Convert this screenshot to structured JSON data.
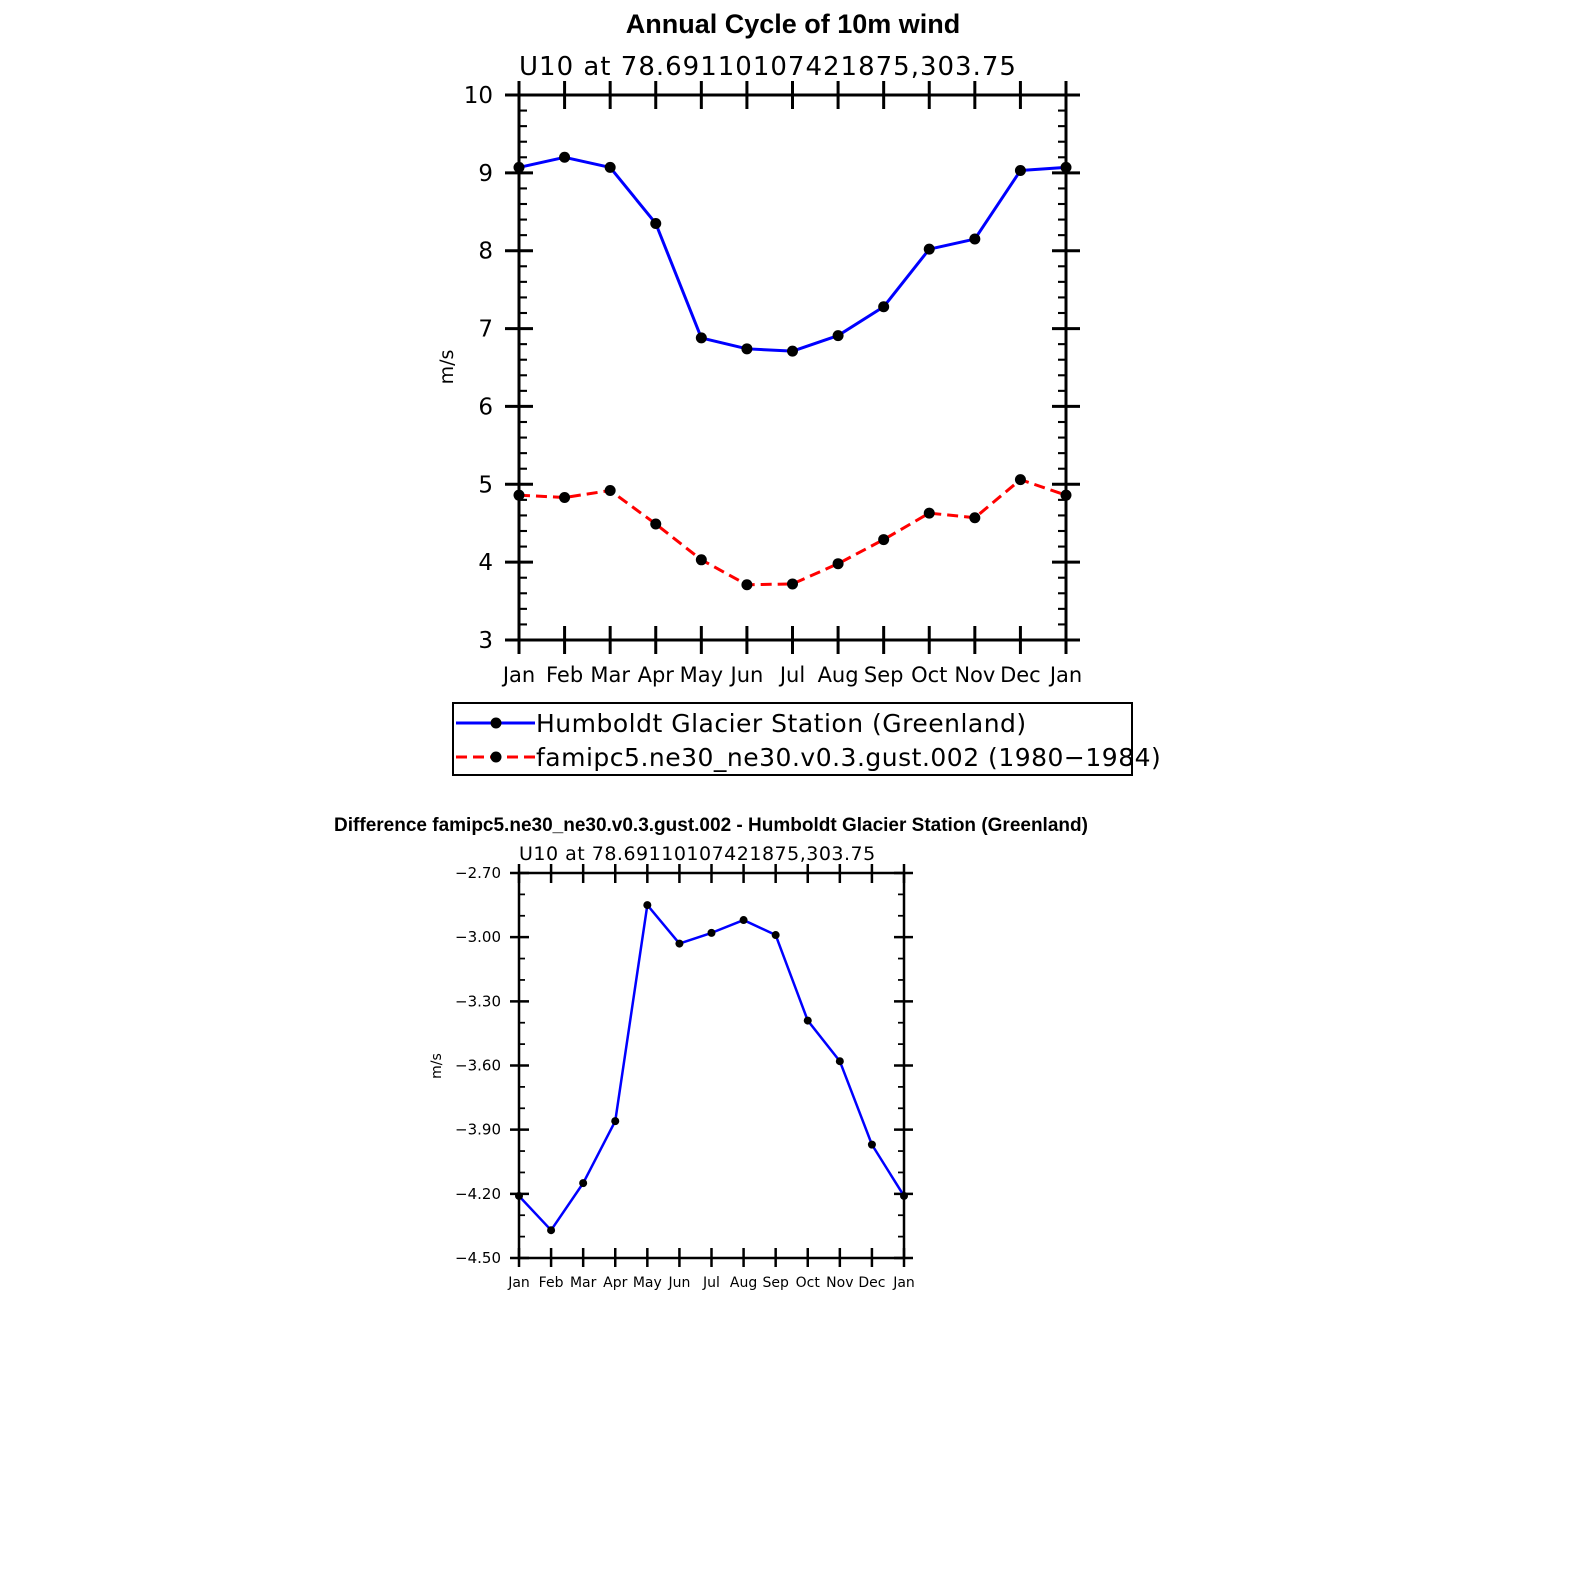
{
  "chart_data": [
    {
      "type": "line",
      "title": "Annual Cycle of 10m wind",
      "subtitle": "U10 at 78.69110107421875,303.75",
      "xlabel": "",
      "ylabel": "m/s",
      "categories": [
        "Jan",
        "Feb",
        "Mar",
        "Apr",
        "May",
        "Jun",
        "Jul",
        "Aug",
        "Sep",
        "Oct",
        "Nov",
        "Dec",
        "Jan"
      ],
      "ylim": [
        3,
        10
      ],
      "yticks": [
        "3",
        "4",
        "5",
        "6",
        "7",
        "8",
        "9",
        "10"
      ],
      "grid": false,
      "legend_position": "bottom",
      "series": [
        {
          "name": "Humboldt Glacier Station (Greenland)",
          "color": "#0000ff",
          "style": "solid",
          "marker": "circle",
          "values": [
            9.07,
            9.2,
            9.07,
            8.35,
            6.88,
            6.74,
            6.71,
            6.91,
            7.28,
            8.02,
            8.15,
            9.03,
            9.07
          ]
        },
        {
          "name": "famipc5.ne30_ne30.v0.3.gust.002 (1980−1984)",
          "color": "#ff0000",
          "style": "dashed",
          "marker": "circle",
          "values": [
            4.86,
            4.83,
            4.92,
            4.49,
            4.03,
            3.71,
            3.72,
            3.98,
            4.29,
            4.63,
            4.57,
            5.06,
            4.86
          ]
        }
      ]
    },
    {
      "type": "line",
      "title": "Difference famipc5.ne30_ne30.v0.3.gust.002 - Humboldt Glacier Station (Greenland)",
      "subtitle": "U10 at 78.69110107421875,303.75",
      "xlabel": "",
      "ylabel": "m/s",
      "categories": [
        "Jan",
        "Feb",
        "Mar",
        "Apr",
        "May",
        "Jun",
        "Jul",
        "Aug",
        "Sep",
        "Oct",
        "Nov",
        "Dec",
        "Jan"
      ],
      "ylim": [
        -4.5,
        -2.7
      ],
      "yticks": [
        "−2.70",
        "−3.00",
        "−3.30",
        "−3.60",
        "−3.90",
        "−4.20",
        "−4.50"
      ],
      "grid": false,
      "series": [
        {
          "color": "#0000ff",
          "style": "solid",
          "marker": "circle",
          "values": [
            -4.21,
            -4.37,
            -4.15,
            -3.86,
            -2.85,
            -3.03,
            -2.98,
            -2.92,
            -2.99,
            -3.39,
            -3.58,
            -3.97,
            -4.21
          ]
        }
      ]
    }
  ]
}
